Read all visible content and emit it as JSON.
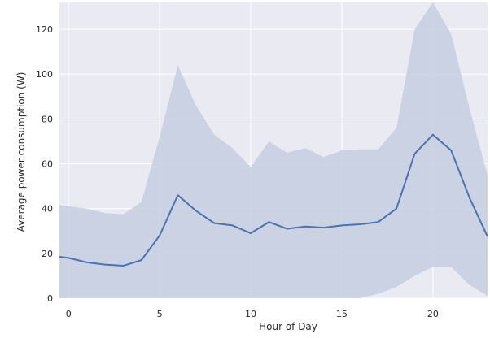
{
  "chart_data": {
    "type": "line",
    "title": "",
    "xlabel": "Hour of Day",
    "ylabel": "Average power consumption (W)",
    "xlim": [
      -0.5,
      23
    ],
    "ylim": [
      0,
      132
    ],
    "x_ticks": [
      0,
      5,
      10,
      15,
      20
    ],
    "y_ticks": [
      0,
      20,
      40,
      60,
      80,
      100,
      120
    ],
    "x_tick_labels": [
      "0",
      "5",
      "10",
      "15",
      "20"
    ],
    "y_tick_labels": [
      "0",
      "20",
      "40",
      "60",
      "80",
      "100",
      "120"
    ],
    "grid": true,
    "x": [
      -0.5,
      0,
      1,
      2,
      3,
      4,
      5,
      6,
      7,
      8,
      9,
      10,
      11,
      12,
      13,
      14,
      15,
      16,
      17,
      18,
      19,
      20,
      21,
      22,
      23
    ],
    "series": [
      {
        "values": [
          18.5,
          18,
          16,
          15,
          14.5,
          17,
          28,
          46,
          39,
          33.5,
          32.5,
          29,
          34,
          31,
          32,
          31.5,
          32.5,
          33,
          34,
          40,
          64.5,
          73,
          66,
          45,
          27.5
        ],
        "band_upper": [
          41.5,
          41,
          40,
          38,
          37.5,
          43,
          72,
          104,
          86,
          73,
          67,
          58.5,
          70,
          65,
          67,
          63,
          66,
          66.5,
          66.5,
          76,
          120,
          132,
          118,
          85,
          55
        ],
        "band_lower": [
          0,
          0,
          0,
          0,
          0,
          0,
          0,
          0,
          0,
          0,
          0,
          0,
          0,
          0,
          0,
          0,
          0,
          0,
          2,
          5,
          10,
          14,
          14,
          6,
          1
        ]
      }
    ],
    "colors": {
      "background": "#eaeaf2",
      "grid": "#ffffff",
      "line": "#4c72b0",
      "band": "#c5cee0"
    }
  }
}
